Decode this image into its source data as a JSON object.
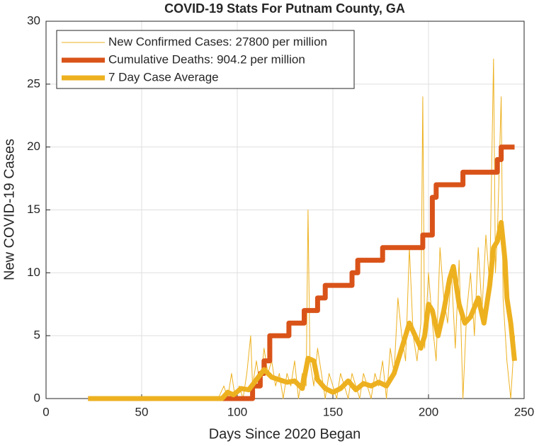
{
  "chart_data": {
    "type": "line",
    "title": "COVID-19 Stats For Putnam County, GA",
    "xlabel": "Days Since 2020 Began",
    "ylabel": "New COVID-19 Cases",
    "xlim": [
      0,
      250
    ],
    "xticks": [
      0,
      50,
      100,
      150,
      200,
      250
    ],
    "ylim": [
      0,
      30
    ],
    "yticks": [
      0,
      5,
      10,
      15,
      20,
      25,
      30
    ],
    "grid": true,
    "legend": "upper left",
    "series": [
      {
        "name": "New Confirmed Cases: 27800 per million",
        "color": "#EDB120",
        "x": [
          22,
          90,
          93,
          95,
          97,
          99,
          101,
          103,
          105,
          107,
          108,
          110,
          112,
          114,
          116,
          118,
          120,
          122,
          124,
          126,
          128,
          130,
          132,
          134,
          136,
          137,
          138,
          140,
          142,
          144,
          146,
          148,
          150,
          152,
          154,
          156,
          158,
          160,
          162,
          164,
          166,
          168,
          170,
          172,
          174,
          176,
          178,
          180,
          182,
          184,
          186,
          188,
          190,
          192,
          194,
          196,
          197,
          198,
          200,
          202,
          204,
          206,
          208,
          210,
          212,
          214,
          216,
          218,
          220,
          222,
          224,
          226,
          228,
          230,
          232,
          234,
          235,
          236,
          238,
          239,
          241,
          243,
          245
        ],
        "values": [
          0,
          0,
          1,
          0,
          2,
          0,
          1,
          0,
          2,
          5,
          1,
          3,
          1,
          4,
          2,
          3,
          1,
          2,
          0,
          2,
          1,
          3,
          0,
          2,
          1,
          15,
          3,
          1,
          4,
          2,
          0,
          2,
          1,
          0,
          2,
          1,
          0,
          2,
          1,
          0,
          2,
          1,
          0,
          2,
          1,
          3,
          0,
          4,
          2,
          8,
          5,
          3,
          12,
          5,
          3,
          6,
          24,
          4,
          10,
          6,
          3,
          12,
          8,
          6,
          10,
          4,
          11,
          0,
          7,
          10,
          5,
          12,
          7,
          13,
          9,
          27,
          10,
          13,
          24,
          8,
          3,
          0,
          5
        ]
      },
      {
        "name": "Cumulative Deaths: 904.2 per million",
        "color": "#D95319",
        "x": [
          22,
          106,
          108,
          108,
          112,
          112,
          114,
          114,
          117,
          117,
          127,
          127,
          135,
          135,
          142,
          142,
          146,
          146,
          160,
          160,
          163,
          163,
          176,
          176,
          197,
          197,
          202,
          202,
          204,
          204,
          218,
          218,
          236,
          236,
          238,
          238,
          245
        ],
        "values": [
          0,
          0,
          0,
          1,
          1,
          2,
          2,
          3,
          3,
          5,
          5,
          6,
          6,
          7,
          7,
          8,
          8,
          9,
          9,
          10,
          10,
          11,
          11,
          12,
          12,
          13,
          13,
          16,
          16,
          17,
          17,
          18,
          18,
          19,
          19,
          20,
          20
        ]
      },
      {
        "name": "7 Day Case Average",
        "color": "#EDB120",
        "x": [
          22,
          92,
          95,
          98,
          102,
          106,
          110,
          114,
          118,
          122,
          126,
          130,
          134,
          137,
          140,
          142,
          146,
          150,
          154,
          158,
          162,
          166,
          170,
          174,
          178,
          182,
          186,
          190,
          193,
          196,
          198,
          200,
          202,
          205,
          208,
          211,
          213,
          216,
          219,
          222,
          226,
          229,
          232,
          234,
          236,
          238,
          240,
          241,
          243,
          245
        ],
        "values": [
          0,
          0,
          0.5,
          0.3,
          0.8,
          0.7,
          1.5,
          2.3,
          1.7,
          1.5,
          1.3,
          1.4,
          0.8,
          3.2,
          3,
          1.5,
          0.8,
          0.5,
          0.8,
          1.4,
          0.7,
          1.2,
          1,
          1.3,
          1,
          2,
          4,
          6,
          5,
          4,
          5,
          7.5,
          7,
          5,
          7,
          9.5,
          10.5,
          7.5,
          6,
          6.5,
          8,
          6,
          9,
          12,
          12.5,
          14,
          11,
          8,
          6,
          3
        ]
      }
    ]
  }
}
